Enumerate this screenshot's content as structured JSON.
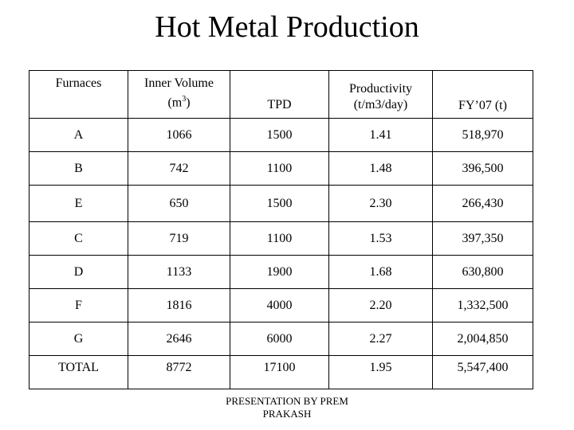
{
  "title": "Hot Metal Production",
  "table": {
    "headers": {
      "furnaces": "Furnaces",
      "inner_volume_line1": "Inner Volume",
      "inner_volume_line2_prefix": "(m",
      "inner_volume_superscript": "3",
      "inner_volume_line2_suffix": ")",
      "tpd": "TPD",
      "productivity_line1": "Productivity",
      "productivity_line2": "(t/m3/day)",
      "fy07": "FY’07 (t)"
    },
    "rows": [
      {
        "furnace": "A",
        "inner_volume": "1066",
        "tpd": "1500",
        "productivity": "1.41",
        "fy07": "518,970"
      },
      {
        "furnace": "B",
        "inner_volume": "742",
        "tpd": "1100",
        "productivity": "1.48",
        "fy07": "396,500"
      },
      {
        "furnace": "E",
        "inner_volume": "650",
        "tpd": "1500",
        "productivity": "2.30",
        "fy07": "266,430"
      },
      {
        "furnace": "C",
        "inner_volume": "719",
        "tpd": "1100",
        "productivity": "1.53",
        "fy07": "397,350"
      },
      {
        "furnace": "D",
        "inner_volume": "1133",
        "tpd": "1900",
        "productivity": "1.68",
        "fy07": "630,800"
      },
      {
        "furnace": "F",
        "inner_volume": "1816",
        "tpd": "4000",
        "productivity": "2.20",
        "fy07": "1,332,500"
      },
      {
        "furnace": "G",
        "inner_volume": "2646",
        "tpd": "6000",
        "productivity": "2.27",
        "fy07": "2,004,850"
      }
    ],
    "total": {
      "label": "TOTAL",
      "inner_volume": "8772",
      "tpd": "17100",
      "productivity": "1.95",
      "fy07": "5,547,400"
    }
  },
  "footer": {
    "line1": "PRESENTATION BY PREM",
    "line2": "PRAKASH"
  }
}
